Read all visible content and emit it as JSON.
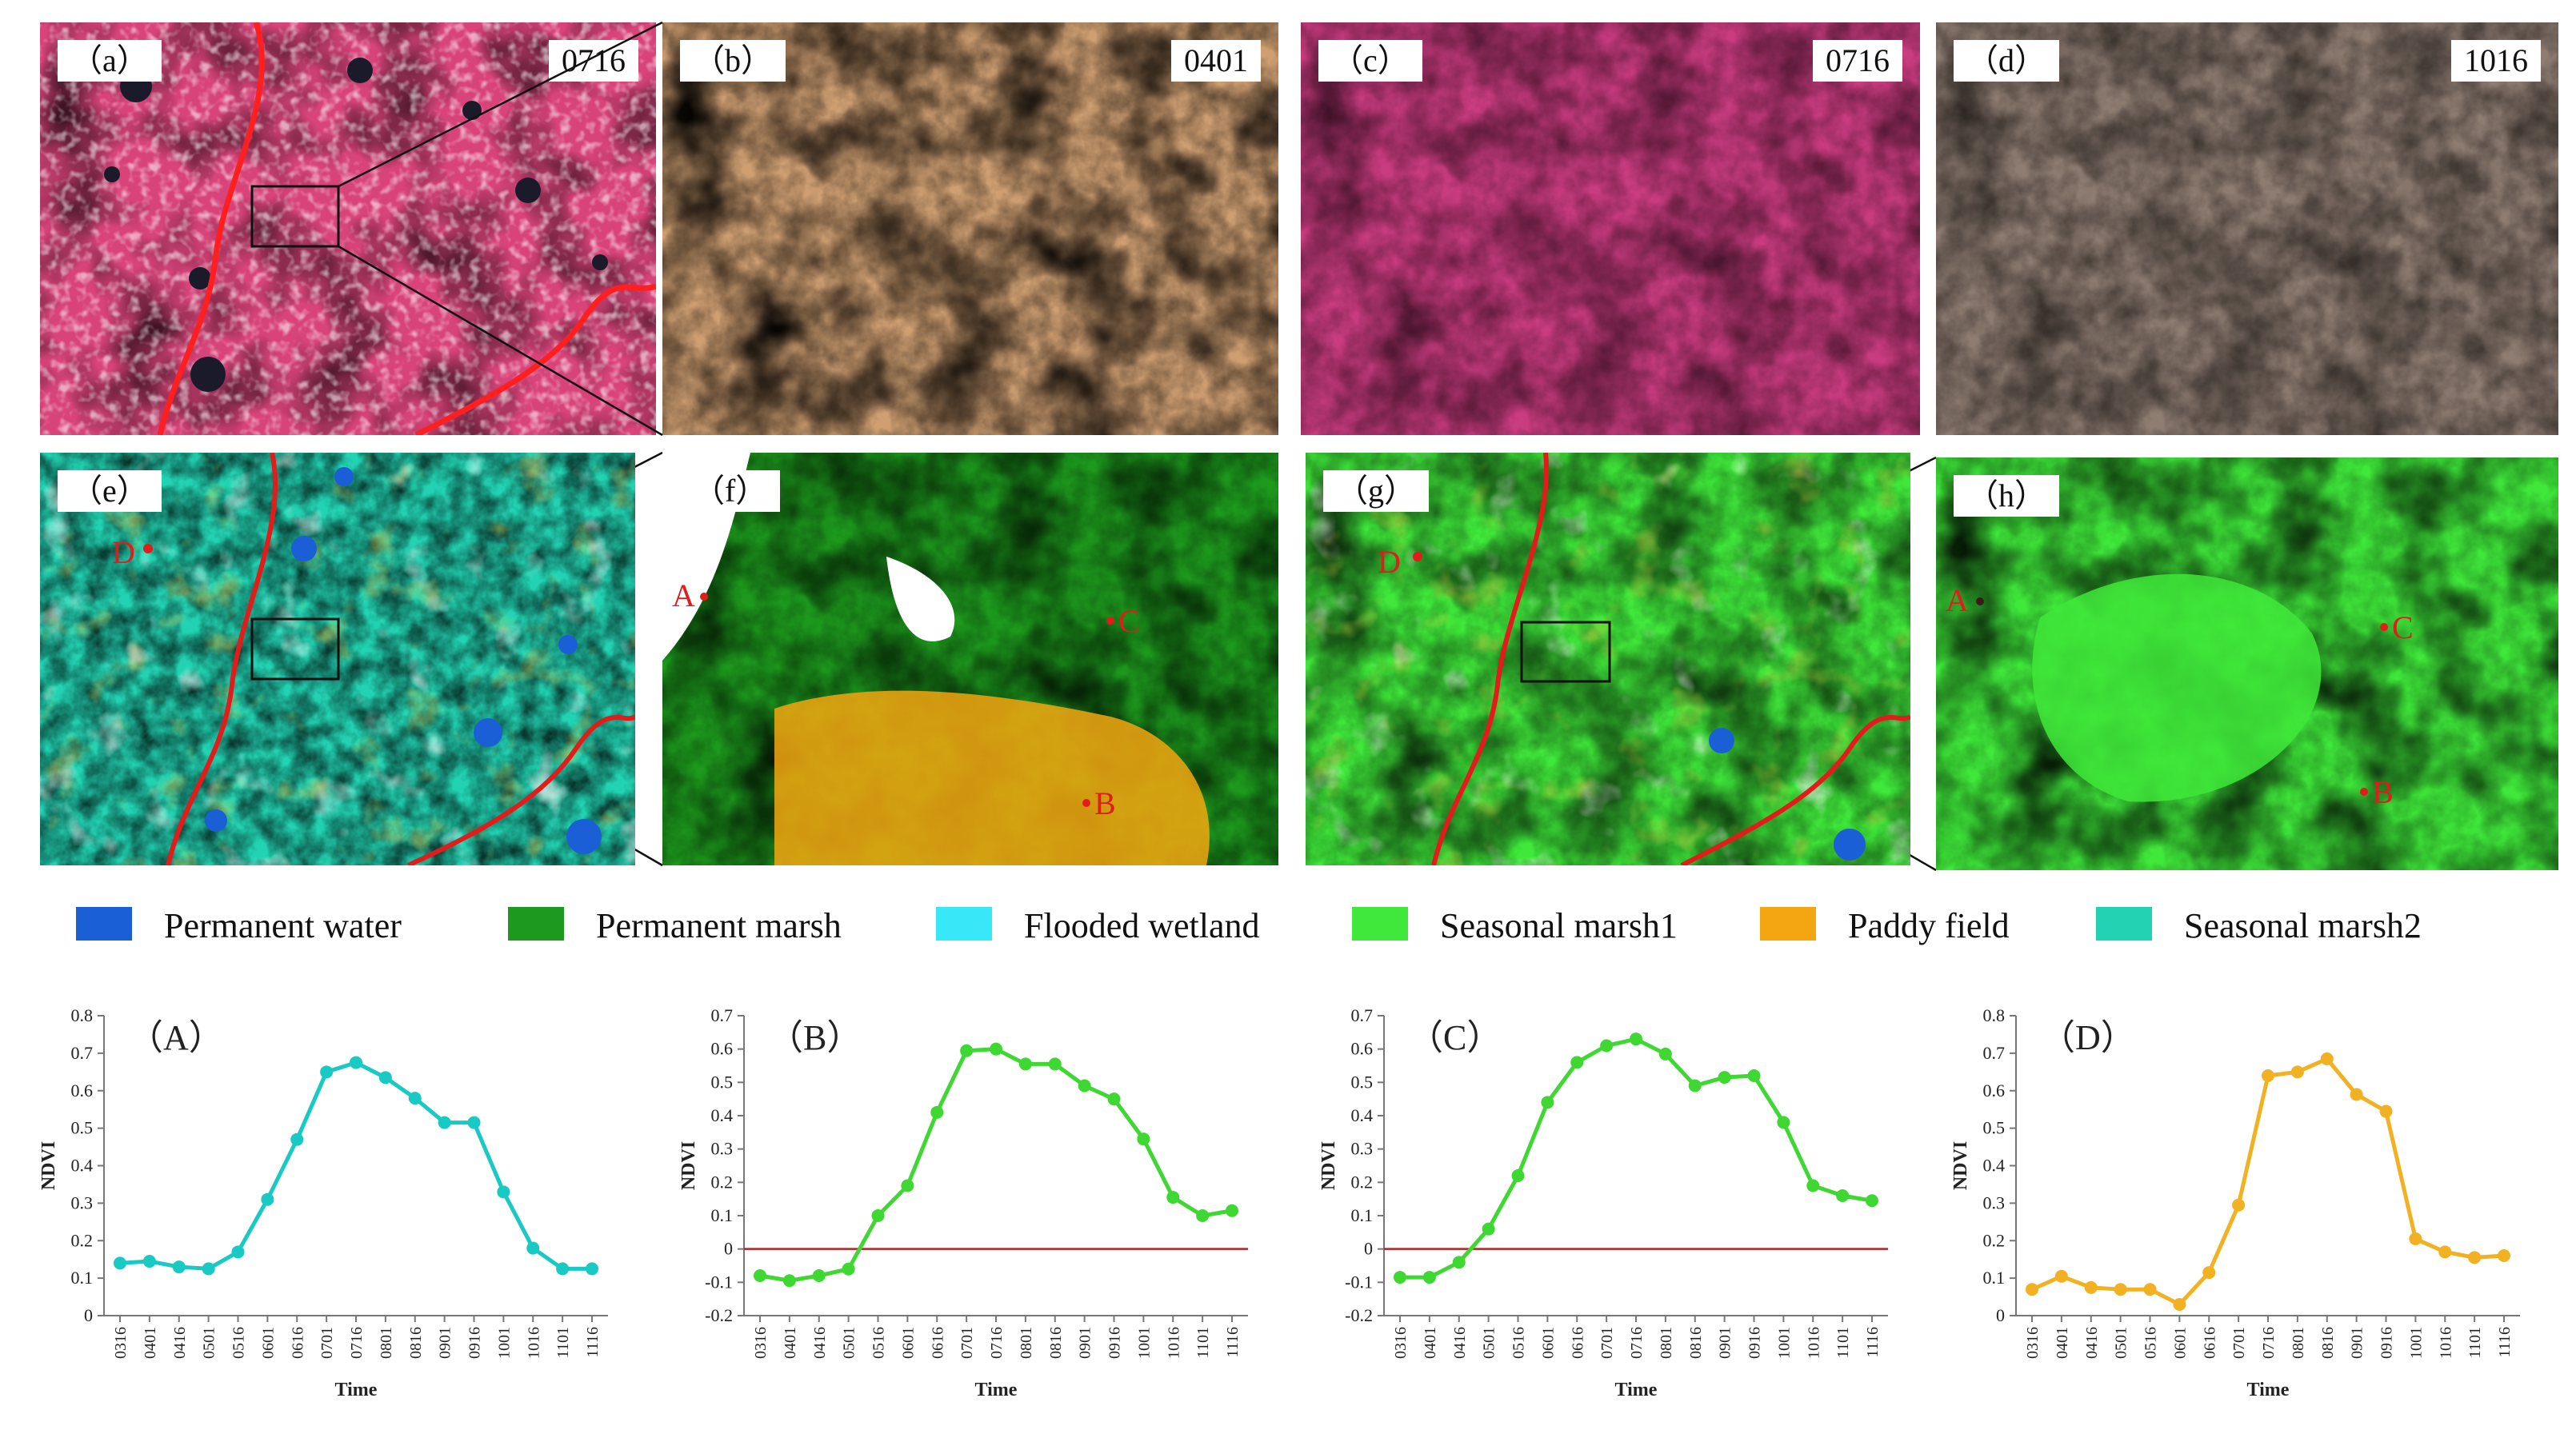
{
  "colors": {
    "permanent_water": "#1a5fd6",
    "permanent_marsh": "#1d9a1d",
    "flooded_wetland": "#38e8f8",
    "seasonal_marsh1": "#3fe83a",
    "paddy_field": "#f3a611",
    "seasonal_marsh2": "#22d3b3",
    "river": "#e21b1b",
    "zero_line": "#b22222"
  },
  "images": [
    {
      "label": "（a）",
      "date": "0716",
      "style": "false-color"
    },
    {
      "label": "（b）",
      "date": "0401",
      "style": "sepia"
    },
    {
      "label": "（c）",
      "date": "0716",
      "style": "magenta"
    },
    {
      "label": "（d）",
      "date": "1016",
      "style": "brown"
    }
  ],
  "maps": [
    {
      "label": "（e）",
      "points": [
        "D"
      ]
    },
    {
      "label": "（f）",
      "points": [
        "A",
        "B",
        "C"
      ]
    },
    {
      "label": "（g）",
      "points": [
        "D"
      ]
    },
    {
      "label": "（h）",
      "points": [
        "A",
        "B",
        "C"
      ]
    }
  ],
  "legend": [
    {
      "label": "Permanent water",
      "color": "#1a5fd6"
    },
    {
      "label": "Permanent marsh",
      "color": "#1d9a1d"
    },
    {
      "label": "Flooded wetland",
      "color": "#38e8f8"
    },
    {
      "label": "Seasonal marsh1",
      "color": "#3fe83a"
    },
    {
      "label": "Paddy field",
      "color": "#f3a611"
    },
    {
      "label": "Seasonal marsh2",
      "color": "#22d3b3"
    }
  ],
  "chart_data": [
    {
      "type": "line",
      "panel": "（A）",
      "xlabel": "Time",
      "ylabel": "NDVI",
      "x": [
        "0316",
        "0401",
        "0416",
        "0501",
        "0516",
        "0601",
        "0616",
        "0701",
        "0716",
        "0801",
        "0816",
        "0901",
        "0916",
        "1001",
        "1016",
        "1101",
        "1116"
      ],
      "values": [
        0.14,
        0.145,
        0.13,
        0.125,
        0.17,
        0.31,
        0.47,
        0.65,
        0.675,
        0.635,
        0.58,
        0.515,
        0.515,
        0.33,
        0.18,
        0.125,
        0.125
      ],
      "ylim": [
        0,
        0.8
      ],
      "yticks": [
        "0",
        "0.1",
        "0.2",
        "0.3",
        "0.4",
        "0.5",
        "0.6",
        "0.7",
        "0.8"
      ],
      "zero_line": false,
      "color": "#18c9c4"
    },
    {
      "type": "line",
      "panel": "（B）",
      "xlabel": "Time",
      "ylabel": "NDVI",
      "x": [
        "0316",
        "0401",
        "0416",
        "0501",
        "0516",
        "0601",
        "0616",
        "0701",
        "0716",
        "0801",
        "0816",
        "0901",
        "0916",
        "1001",
        "1016",
        "1101",
        "1116"
      ],
      "values": [
        -0.08,
        -0.095,
        -0.08,
        -0.06,
        0.1,
        0.19,
        0.41,
        0.595,
        0.6,
        0.555,
        0.555,
        0.49,
        0.45,
        0.33,
        0.155,
        0.1,
        0.115
      ],
      "ylim": [
        -0.2,
        0.7
      ],
      "yticks": [
        "-0.2",
        "-0.1",
        "0",
        "0.1",
        "0.2",
        "0.3",
        "0.4",
        "0.5",
        "0.6",
        "0.7"
      ],
      "zero_line": true,
      "color": "#3fd832"
    },
    {
      "type": "line",
      "panel": "（C）",
      "xlabel": "Time",
      "ylabel": "NDVI",
      "x": [
        "0316",
        "0401",
        "0416",
        "0501",
        "0516",
        "0601",
        "0616",
        "0701",
        "0716",
        "0801",
        "0816",
        "0901",
        "0916",
        "1001",
        "1016",
        "1101",
        "1116"
      ],
      "values": [
        -0.085,
        -0.085,
        -0.04,
        0.06,
        0.22,
        0.44,
        0.56,
        0.61,
        0.63,
        0.585,
        0.49,
        0.515,
        0.52,
        0.38,
        0.19,
        0.16,
        0.145
      ],
      "ylim": [
        -0.2,
        0.7
      ],
      "yticks": [
        "-0.2",
        "-0.1",
        "0",
        "0.1",
        "0.2",
        "0.3",
        "0.4",
        "0.5",
        "0.6",
        "0.7"
      ],
      "zero_line": true,
      "color": "#3fd832"
    },
    {
      "type": "line",
      "panel": "（D）",
      "xlabel": "Time",
      "ylabel": "NDVI",
      "x": [
        "0316",
        "0401",
        "0416",
        "0501",
        "0516",
        "0601",
        "0616",
        "0701",
        "0716",
        "0801",
        "0816",
        "0901",
        "0916",
        "1001",
        "1016",
        "1101",
        "1116"
      ],
      "values": [
        0.07,
        0.105,
        0.075,
        0.07,
        0.07,
        0.03,
        0.115,
        0.295,
        0.64,
        0.65,
        0.685,
        0.59,
        0.545,
        0.205,
        0.17,
        0.155,
        0.16
      ],
      "ylim": [
        0,
        0.8
      ],
      "yticks": [
        "0",
        "0.1",
        "0.2",
        "0.3",
        "0.4",
        "0.5",
        "0.6",
        "0.7",
        "0.8"
      ],
      "zero_line": false,
      "color": "#f2b122"
    }
  ]
}
